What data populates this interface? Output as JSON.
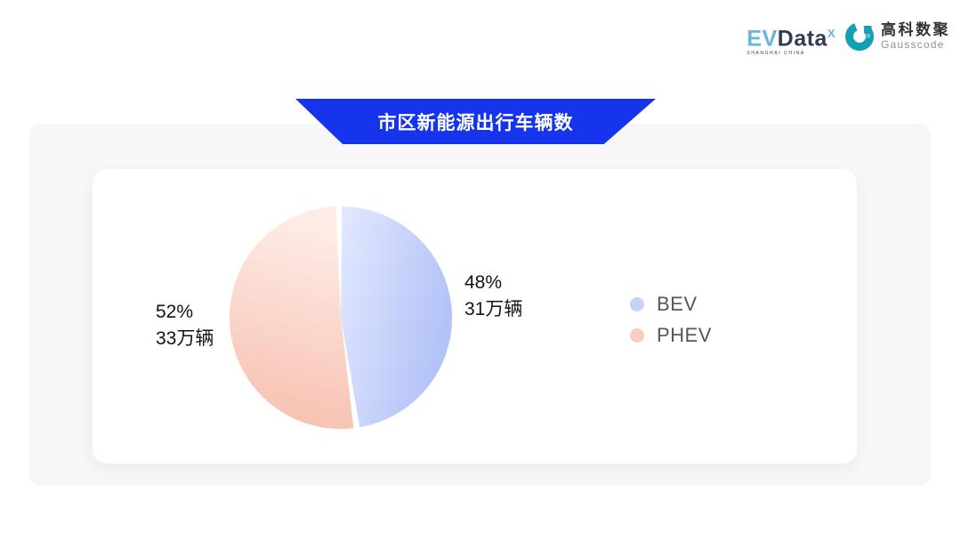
{
  "header": {
    "evdata_logo": {
      "text_ev": "EV",
      "text_data": "Data",
      "superscript": "X",
      "subtext": "SHANGHAI CHINA"
    },
    "gausscode_logo": {
      "icon": "gausscode-g-icon",
      "icon_color": "#14a0b4",
      "name_cn": "高科数聚",
      "name_en": "Gausscode"
    }
  },
  "banner": {
    "title": "市区新能源出行车辆数",
    "color": "#1534EC"
  },
  "chart_data": {
    "type": "pie",
    "title": "市区新能源出行车辆数",
    "unit": "万辆",
    "start_angle_deg": -1,
    "pad_angle_deg": 3.2,
    "legend_position": "right",
    "series": [
      {
        "name": "BEV",
        "percent": 48,
        "value": 31,
        "percent_text": "48%",
        "value_text": "31万辆",
        "color_light": "#e2e9fe",
        "color_dark": "#b3c2f7",
        "legend_color": "#c6d2fa"
      },
      {
        "name": "PHEV",
        "percent": 52,
        "value": 33,
        "percent_text": "52%",
        "value_text": "33万辆",
        "color_light": "#fdece6",
        "color_dark": "#f7bdac",
        "legend_color": "#f9cebf"
      }
    ]
  }
}
